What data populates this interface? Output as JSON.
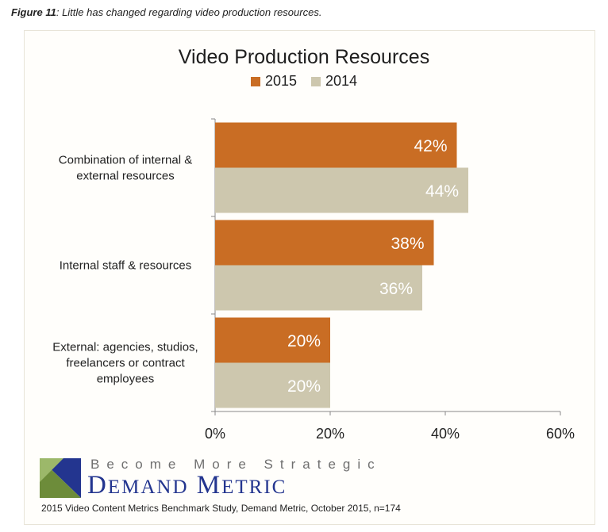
{
  "caption": {
    "figure": "Figure 11",
    "text": ": Little has changed regarding video production resources."
  },
  "colors": {
    "series_2015": "#c96d24",
    "series_2014": "#cdc7ae"
  },
  "chart_data": {
    "type": "bar",
    "orientation": "horizontal",
    "title": "Video Production Resources",
    "categories": [
      "Combination of internal & external resources",
      "Internal staff & resources",
      "External: agencies, studios, freelancers or contract employees"
    ],
    "category_lines": [
      [
        "Combination of internal &",
        "external resources"
      ],
      [
        "Internal staff & resources"
      ],
      [
        "External: agencies, studios,",
        "freelancers or contract",
        "employees"
      ]
    ],
    "series": [
      {
        "name": "2015",
        "values": [
          42,
          38,
          20
        ],
        "labels": [
          "42%",
          "38%",
          "20%"
        ]
      },
      {
        "name": "2014",
        "values": [
          44,
          36,
          20
        ],
        "labels": [
          "44%",
          "36%",
          "20%"
        ]
      }
    ],
    "xlim": [
      0,
      60
    ],
    "ticks": [
      0,
      20,
      40,
      60
    ],
    "tick_labels": [
      "0%",
      "20%",
      "40%",
      "60%"
    ],
    "legend_position": "top-center",
    "grid": false
  },
  "footer": {
    "tagline": "Become More Strategic",
    "brand_first_initial": "D",
    "brand_first_rest": "EMAND",
    "brand_second_initial": "M",
    "brand_second_rest": "ETRIC",
    "source": "2015 Video Content Metrics Benchmark Study, Demand Metric, October 2015, n=174"
  }
}
